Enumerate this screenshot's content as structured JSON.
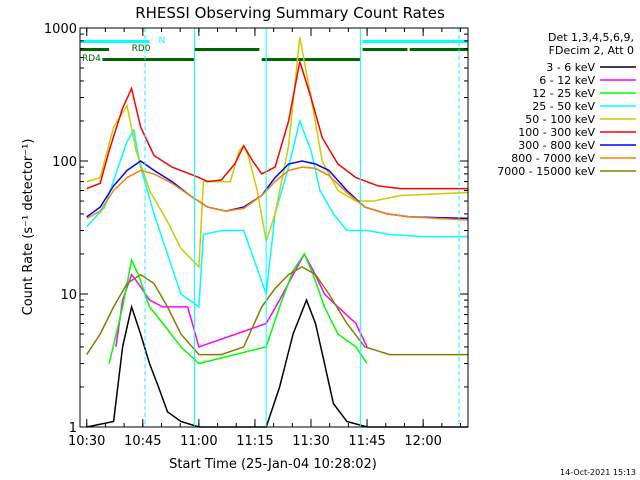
{
  "chart_data": {
    "type": "line",
    "title": "RHESSI Observing Summary Count Rates",
    "xlabel": "Start Time (25-Jan-04 10:28:02)",
    "ylabel": "Count Rate (s⁻¹ detector⁻¹)",
    "yscale": "log",
    "ylim": [
      1,
      1000
    ],
    "xlim_minutes": [
      10.47,
      12.2
    ],
    "x_ticks": [
      "10:30",
      "10:45",
      "11:00",
      "11:15",
      "11:30",
      "11:45",
      "12:00"
    ],
    "y_ticks": [
      "1",
      "10",
      "100",
      "1000"
    ],
    "legend_header": [
      "Det 1,3,4,5,6,9,",
      "FDecim 2, Att 0"
    ],
    "footer_date": "14-Oct-2021 15:13",
    "annotations": [
      {
        "text": "N",
        "color": "#00ffff"
      },
      {
        "text": "RD0",
        "color": "#006600"
      },
      {
        "text": "RD4",
        "color": "#006600"
      }
    ],
    "series": [
      {
        "name": "3 - 6 keV",
        "color": "#000000",
        "points": [
          [
            10.5,
            1
          ],
          [
            10.62,
            1.1
          ],
          [
            10.66,
            4
          ],
          [
            10.7,
            8
          ],
          [
            10.74,
            5
          ],
          [
            10.78,
            3
          ],
          [
            10.82,
            2
          ],
          [
            10.86,
            1.3
          ],
          [
            10.92,
            1.1
          ],
          [
            11.0,
            1
          ],
          [
            11.3,
            1
          ],
          [
            11.36,
            2
          ],
          [
            11.42,
            5
          ],
          [
            11.48,
            9
          ],
          [
            11.52,
            6
          ],
          [
            11.56,
            3
          ],
          [
            11.6,
            1.5
          ],
          [
            11.66,
            1.1
          ],
          [
            11.75,
            1
          ],
          [
            12.2,
            1
          ]
        ]
      },
      {
        "name": "6 - 12 keV",
        "color": "#ff00ff",
        "points": [
          [
            10.63,
            4
          ],
          [
            10.66,
            9
          ],
          [
            10.7,
            14
          ],
          [
            10.73,
            12
          ],
          [
            10.78,
            9
          ],
          [
            10.84,
            8
          ],
          [
            10.9,
            8
          ],
          [
            10.95,
            8
          ],
          [
            11.0,
            4
          ],
          [
            11.3,
            6
          ],
          [
            11.36,
            9
          ],
          [
            11.42,
            14
          ],
          [
            11.47,
            20
          ],
          [
            11.51,
            15
          ],
          [
            11.56,
            10
          ],
          [
            11.62,
            8
          ],
          [
            11.7,
            6
          ],
          [
            11.75,
            4
          ]
        ]
      },
      {
        "name": "12 - 25 keV",
        "color": "#00ff00",
        "points": [
          [
            10.6,
            3
          ],
          [
            10.66,
            8
          ],
          [
            10.7,
            18
          ],
          [
            10.73,
            14
          ],
          [
            10.78,
            8
          ],
          [
            10.84,
            6
          ],
          [
            10.92,
            4
          ],
          [
            11.0,
            3
          ],
          [
            11.3,
            4
          ],
          [
            11.36,
            8
          ],
          [
            11.42,
            15
          ],
          [
            11.47,
            20
          ],
          [
            11.51,
            14
          ],
          [
            11.56,
            8
          ],
          [
            11.62,
            5
          ],
          [
            11.7,
            4
          ],
          [
            11.75,
            3
          ]
        ]
      },
      {
        "name": "25 - 50 keV",
        "color": "#00ffff",
        "points": [
          [
            10.5,
            32
          ],
          [
            10.58,
            45
          ],
          [
            10.64,
            90
          ],
          [
            10.68,
            140
          ],
          [
            10.71,
            170
          ],
          [
            10.74,
            90
          ],
          [
            10.8,
            40
          ],
          [
            10.86,
            20
          ],
          [
            10.92,
            10
          ],
          [
            11.0,
            8
          ],
          [
            11.02,
            28
          ],
          [
            11.1,
            30
          ],
          [
            11.2,
            30
          ],
          [
            11.3,
            10
          ],
          [
            11.34,
            40
          ],
          [
            11.4,
            90
          ],
          [
            11.45,
            200
          ],
          [
            11.5,
            120
          ],
          [
            11.54,
            60
          ],
          [
            11.6,
            40
          ],
          [
            11.66,
            30
          ],
          [
            11.75,
            30
          ],
          [
            11.85,
            28
          ],
          [
            12.0,
            27
          ],
          [
            12.2,
            27
          ]
        ]
      },
      {
        "name": "50 - 100 keV",
        "color": "#cccc00",
        "points": [
          [
            10.5,
            70
          ],
          [
            10.56,
            75
          ],
          [
            10.62,
            180
          ],
          [
            10.68,
            260
          ],
          [
            10.72,
            120
          ],
          [
            10.78,
            60
          ],
          [
            10.86,
            35
          ],
          [
            10.92,
            22
          ],
          [
            11.0,
            16
          ],
          [
            11.02,
            70
          ],
          [
            11.1,
            70
          ],
          [
            11.14,
            70
          ],
          [
            11.18,
            120
          ],
          [
            11.2,
            130
          ],
          [
            11.22,
            110
          ],
          [
            11.26,
            60
          ],
          [
            11.3,
            25
          ],
          [
            11.34,
            40
          ],
          [
            11.4,
            130
          ],
          [
            11.45,
            850
          ],
          [
            11.5,
            300
          ],
          [
            11.55,
            100
          ],
          [
            11.62,
            60
          ],
          [
            11.7,
            50
          ],
          [
            11.78,
            50
          ],
          [
            11.9,
            55
          ],
          [
            12.2,
            58
          ]
        ]
      },
      {
        "name": "100 - 300 keV",
        "color": "#ff0000",
        "points": [
          [
            10.5,
            62
          ],
          [
            10.56,
            68
          ],
          [
            10.6,
            120
          ],
          [
            10.66,
            250
          ],
          [
            10.7,
            350
          ],
          [
            10.74,
            180
          ],
          [
            10.8,
            110
          ],
          [
            10.88,
            90
          ],
          [
            10.96,
            80
          ],
          [
            11.0,
            75
          ],
          [
            11.04,
            70
          ],
          [
            11.1,
            72
          ],
          [
            11.16,
            95
          ],
          [
            11.2,
            130
          ],
          [
            11.24,
            100
          ],
          [
            11.28,
            80
          ],
          [
            11.34,
            90
          ],
          [
            11.4,
            200
          ],
          [
            11.45,
            560
          ],
          [
            11.5,
            300
          ],
          [
            11.55,
            150
          ],
          [
            11.62,
            95
          ],
          [
            11.7,
            75
          ],
          [
            11.8,
            65
          ],
          [
            11.9,
            62
          ],
          [
            12.2,
            62
          ]
        ]
      },
      {
        "name": "300 - 800 keV",
        "color": "#0000ff",
        "points": [
          [
            10.5,
            38
          ],
          [
            10.56,
            45
          ],
          [
            10.62,
            65
          ],
          [
            10.68,
            85
          ],
          [
            10.74,
            100
          ],
          [
            10.8,
            85
          ],
          [
            10.88,
            70
          ],
          [
            10.96,
            55
          ],
          [
            11.04,
            45
          ],
          [
            11.12,
            42
          ],
          [
            11.2,
            45
          ],
          [
            11.28,
            55
          ],
          [
            11.34,
            75
          ],
          [
            11.4,
            95
          ],
          [
            11.46,
            100
          ],
          [
            11.52,
            95
          ],
          [
            11.58,
            85
          ],
          [
            11.66,
            60
          ],
          [
            11.74,
            45
          ],
          [
            11.84,
            40
          ],
          [
            11.94,
            38
          ],
          [
            12.2,
            37
          ]
        ]
      },
      {
        "name": "800 - 7000 keV",
        "color": "#ff8000",
        "points": [
          [
            10.5,
            37
          ],
          [
            10.56,
            42
          ],
          [
            10.62,
            60
          ],
          [
            10.68,
            75
          ],
          [
            10.74,
            85
          ],
          [
            10.8,
            80
          ],
          [
            10.88,
            68
          ],
          [
            10.96,
            55
          ],
          [
            11.04,
            45
          ],
          [
            11.12,
            42
          ],
          [
            11.2,
            44
          ],
          [
            11.28,
            55
          ],
          [
            11.34,
            70
          ],
          [
            11.4,
            85
          ],
          [
            11.46,
            90
          ],
          [
            11.52,
            88
          ],
          [
            11.58,
            78
          ],
          [
            11.66,
            58
          ],
          [
            11.74,
            45
          ],
          [
            11.84,
            40
          ],
          [
            11.94,
            38
          ],
          [
            12.2,
            36
          ]
        ]
      },
      {
        "name": "7000 - 15000 keV",
        "color": "#808000",
        "points": [
          [
            10.5,
            3.5
          ],
          [
            10.56,
            5
          ],
          [
            10.62,
            8
          ],
          [
            10.68,
            12
          ],
          [
            10.74,
            14
          ],
          [
            10.8,
            12
          ],
          [
            10.86,
            8
          ],
          [
            10.92,
            5
          ],
          [
            11.0,
            3.5
          ],
          [
            11.1,
            3.5
          ],
          [
            11.2,
            4
          ],
          [
            11.28,
            8
          ],
          [
            11.34,
            11
          ],
          [
            11.4,
            14
          ],
          [
            11.46,
            16
          ],
          [
            11.52,
            14
          ],
          [
            11.58,
            10
          ],
          [
            11.66,
            6
          ],
          [
            11.74,
            4
          ],
          [
            11.85,
            3.5
          ],
          [
            12.2,
            3.5
          ]
        ]
      }
    ]
  }
}
